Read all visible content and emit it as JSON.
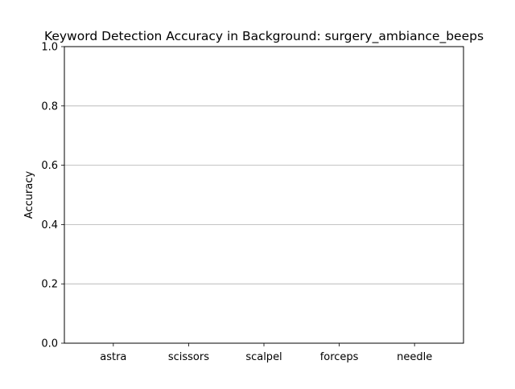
{
  "chart_data": {
    "type": "bar",
    "title": "Keyword Detection Accuracy in Background: surgery_ambiance_beeps",
    "xlabel": "",
    "ylabel": "Accuracy",
    "categories": [
      "astra",
      "scissors",
      "scalpel",
      "forceps",
      "needle"
    ],
    "values": [
      0,
      0,
      0,
      0,
      0
    ],
    "ylim": [
      0,
      1.0
    ],
    "yticks": [
      "0.0",
      "0.2",
      "0.4",
      "0.6",
      "0.8",
      "1.0"
    ],
    "grid": "y-axis",
    "legend": "none",
    "colors": {
      "grid": "#b0b0b0",
      "axes": "#000000",
      "bar": "#1f77b4"
    }
  }
}
